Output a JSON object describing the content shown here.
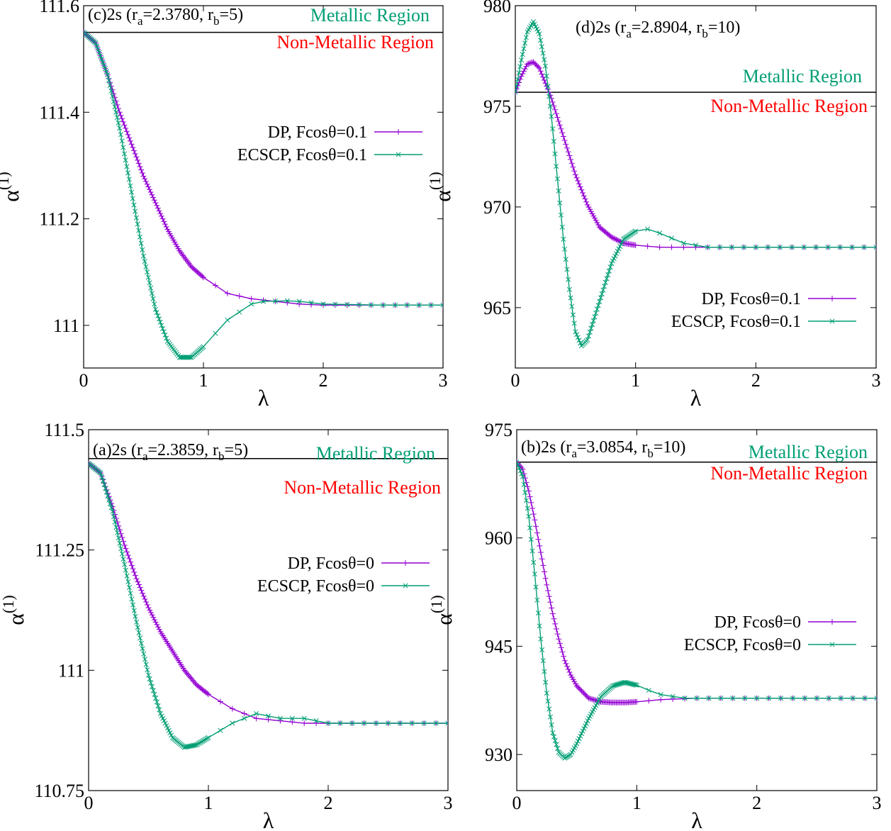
{
  "colors": {
    "dp": "#9400d3",
    "ecscp": "#009e73",
    "metallic_text": "#009e73",
    "nonmetallic_text": "#ff0000",
    "axes": "#000000"
  },
  "chart_data": [
    {
      "id": "c",
      "type": "line",
      "title": {
        "prefix": "(c)2s (r",
        "a_val": "=2.3780, r",
        "b_val": "=5)"
      },
      "xlabel": "λ",
      "ylabel": {
        "base": "α",
        "sup": "(1)"
      },
      "xlim": [
        0,
        3
      ],
      "ylim": [
        110.92,
        111.6
      ],
      "xticks": [
        0,
        1,
        2,
        3
      ],
      "xtick_labels": [
        "0",
        "1",
        "2",
        "3"
      ],
      "yticks": [
        111,
        111.2,
        111.4,
        111.6
      ],
      "ytick_labels": [
        "111",
        "111.2",
        "111.4",
        "111.6"
      ],
      "boundary_y": 111.55,
      "region_labels": {
        "metallic": "Metallic Region",
        "nonmetallic": "Non-Metallic Region"
      },
      "legend_position": "right-middle",
      "series": [
        {
          "name": "DP, Fcosθ=0.1",
          "x": [
            0,
            0.1,
            0.2,
            0.3,
            0.4,
            0.5,
            0.6,
            0.7,
            0.8,
            0.9,
            1.0,
            1.2,
            1.4,
            1.6,
            1.8,
            2.0,
            2.5,
            3.0
          ],
          "y": [
            111.55,
            111.53,
            111.47,
            111.4,
            111.34,
            111.28,
            111.23,
            111.18,
            111.14,
            111.11,
            111.09,
            111.06,
            111.05,
            111.045,
            111.04,
            111.038,
            111.038,
            111.038
          ]
        },
        {
          "name": "ECSCP, Fcosθ=0.1",
          "x": [
            0,
            0.1,
            0.2,
            0.3,
            0.4,
            0.5,
            0.6,
            0.7,
            0.8,
            0.9,
            1.0,
            1.2,
            1.4,
            1.5,
            1.7,
            1.8,
            2.0,
            2.5,
            3.0
          ],
          "y": [
            111.55,
            111.53,
            111.47,
            111.37,
            111.25,
            111.13,
            111.03,
            110.97,
            110.94,
            110.94,
            110.96,
            111.01,
            111.04,
            111.045,
            111.046,
            111.045,
            111.04,
            111.038,
            111.038
          ]
        }
      ]
    },
    {
      "id": "d",
      "type": "line",
      "title": {
        "prefix": "(d)2s (r",
        "a_val": "=2.8904, r",
        "b_val": "=10)"
      },
      "xlabel": "λ",
      "ylabel": {
        "base": "α",
        "sup": "(1)"
      },
      "xlim": [
        0,
        3
      ],
      "ylim": [
        962,
        980
      ],
      "xticks": [
        0,
        1,
        2,
        3
      ],
      "xtick_labels": [
        "0",
        "1",
        "2",
        "3"
      ],
      "yticks": [
        965,
        970,
        975,
        980
      ],
      "ytick_labels": [
        "965",
        "970",
        "975",
        "980"
      ],
      "boundary_y": 975.7,
      "region_labels": {
        "metallic": "Metallic Region",
        "nonmetallic": "Non-Metallic Region"
      },
      "legend_position": "bottom-right",
      "series": [
        {
          "name": "DP, Fcosθ=0.1",
          "x": [
            0,
            0.05,
            0.1,
            0.15,
            0.2,
            0.3,
            0.4,
            0.5,
            0.6,
            0.7,
            0.8,
            0.9,
            1.0,
            1.2,
            1.5,
            2.0,
            2.5,
            3.0
          ],
          "y": [
            975.7,
            976.5,
            977.1,
            977.2,
            976.9,
            975.4,
            973.5,
            971.6,
            970.1,
            969.0,
            968.5,
            968.2,
            968.1,
            968.0,
            968.0,
            968.0,
            968.0,
            968.0
          ]
        },
        {
          "name": "ECSCP, Fcosθ=0.1",
          "x": [
            0,
            0.05,
            0.1,
            0.15,
            0.2,
            0.25,
            0.3,
            0.35,
            0.4,
            0.45,
            0.5,
            0.55,
            0.6,
            0.7,
            0.8,
            0.9,
            1.0,
            1.1,
            1.2,
            1.4,
            1.6,
            2.0,
            2.5,
            3.0
          ],
          "y": [
            975.7,
            977.3,
            978.7,
            979.2,
            978.6,
            977.0,
            974.5,
            971.4,
            968.4,
            965.9,
            963.8,
            963.1,
            963.4,
            965.3,
            967.2,
            968.4,
            968.8,
            968.9,
            968.7,
            968.2,
            968.0,
            968.0,
            968.0,
            968.0
          ]
        }
      ]
    },
    {
      "id": "a",
      "type": "line",
      "title": {
        "prefix": "(a)2s (r",
        "a_val": "=2.3859, r",
        "b_val": "=5)"
      },
      "xlabel": "λ",
      "ylabel": {
        "base": "α",
        "sup": "(1)"
      },
      "xlim": [
        0,
        3
      ],
      "ylim": [
        110.75,
        111.5
      ],
      "xticks": [
        0,
        1,
        2,
        3
      ],
      "xtick_labels": [
        "0",
        "1",
        "2",
        "3"
      ],
      "yticks": [
        110.75,
        111,
        111.25,
        111.5
      ],
      "ytick_labels": [
        "110.75",
        "111",
        "111.25",
        "111.5"
      ],
      "boundary_y": 111.44,
      "region_labels": {
        "metallic": "Metallic Region",
        "nonmetallic": "Non-Metallic Region"
      },
      "legend_position": "right-middle",
      "series": [
        {
          "name": "DP, Fcosθ=0",
          "x": [
            0,
            0.1,
            0.2,
            0.3,
            0.4,
            0.5,
            0.6,
            0.7,
            0.8,
            0.9,
            1.0,
            1.2,
            1.4,
            1.6,
            1.8,
            2.0,
            2.5,
            3.0
          ],
          "y": [
            111.43,
            111.41,
            111.34,
            111.26,
            111.19,
            111.13,
            111.08,
            111.04,
            111.0,
            110.97,
            110.95,
            110.92,
            110.9,
            110.895,
            110.89,
            110.89,
            110.89,
            110.89
          ]
        },
        {
          "name": "ECSCP, Fcosθ=0",
          "x": [
            0,
            0.1,
            0.2,
            0.3,
            0.4,
            0.5,
            0.6,
            0.7,
            0.8,
            0.9,
            1.0,
            1.2,
            1.4,
            1.5,
            1.6,
            1.8,
            2.0,
            2.5,
            3.0
          ],
          "y": [
            111.43,
            111.41,
            111.33,
            111.22,
            111.1,
            110.99,
            110.91,
            110.86,
            110.84,
            110.845,
            110.86,
            110.89,
            110.91,
            110.905,
            110.9,
            110.9,
            110.89,
            110.89,
            110.89
          ]
        }
      ]
    },
    {
      "id": "b",
      "type": "line",
      "title": {
        "prefix": "(b)2s (r",
        "a_val": "=3.0854, r",
        "b_val": "=10)"
      },
      "xlabel": "λ",
      "ylabel": {
        "base": "α",
        "sup": "(1)"
      },
      "xlim": [
        0,
        3
      ],
      "ylim": [
        925,
        975
      ],
      "xticks": [
        0,
        1,
        2,
        3
      ],
      "xtick_labels": [
        "0",
        "1",
        "2",
        "3"
      ],
      "yticks": [
        930,
        945,
        960,
        975
      ],
      "ytick_labels": [
        "930",
        "945",
        "960",
        "975"
      ],
      "boundary_y": 970.5,
      "region_labels": {
        "metallic": "Metallic Region",
        "nonmetallic": "Non-Metallic Region"
      },
      "legend_position": "right-middle",
      "series": [
        {
          "name": "DP, Fcosθ=0",
          "x": [
            0,
            0.05,
            0.1,
            0.15,
            0.2,
            0.25,
            0.3,
            0.35,
            0.4,
            0.45,
            0.5,
            0.6,
            0.7,
            0.8,
            0.9,
            1.0,
            1.2,
            1.5,
            2.0,
            2.5,
            3.0
          ],
          "y": [
            970.5,
            969.5,
            966.5,
            962.5,
            958.0,
            953.5,
            949.5,
            946.0,
            943.0,
            941.0,
            939.5,
            937.8,
            937.3,
            937.2,
            937.2,
            937.3,
            937.6,
            937.8,
            937.8,
            937.8,
            937.8
          ]
        },
        {
          "name": "ECSCP, Fcosθ=0",
          "x": [
            0,
            0.05,
            0.1,
            0.15,
            0.2,
            0.25,
            0.3,
            0.35,
            0.4,
            0.45,
            0.5,
            0.6,
            0.7,
            0.8,
            0.9,
            1.0,
            1.1,
            1.2,
            1.4,
            1.6,
            2.0,
            2.5,
            3.0
          ],
          "y": [
            970.5,
            968.5,
            963.0,
            955.0,
            946.0,
            938.5,
            933.0,
            930.3,
            929.5,
            930.0,
            931.5,
            935.0,
            938.0,
            939.5,
            940.0,
            939.6,
            938.9,
            938.3,
            937.8,
            937.8,
            937.8,
            937.8,
            937.8
          ]
        }
      ]
    }
  ]
}
